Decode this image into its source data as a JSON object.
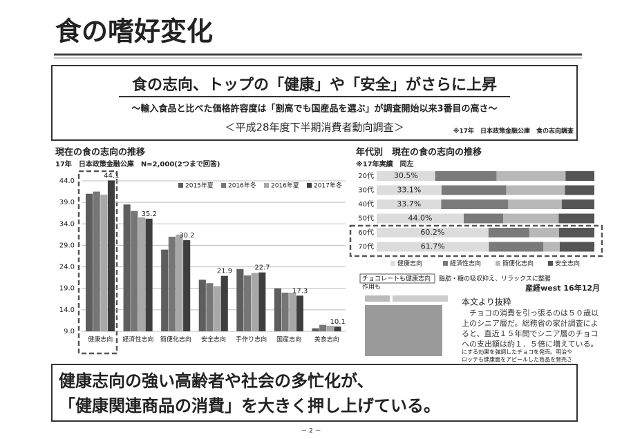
{
  "header": {
    "title": "食の嗜好変化"
  },
  "summary": {
    "headline": "食の志向、トップの「健康」や「安全」がさらに上昇",
    "subline": "～輸入食品と比べた価格許容度は「割高でも国産品を選ぶ」が調査開始以来3番目の高さ～",
    "survey": "＜平成28年度下半期消費者動向調査＞",
    "source": "※17年　日本政策金融公庫　食の志向調査"
  },
  "chart_data": [
    {
      "type": "bar",
      "title": "現在の食の志向の推移",
      "subtitle": "17年　日本政策金融公庫　N=2,000(2つまで回答)",
      "categories": [
        "健康志向",
        "経済性志向",
        "簡便化志向",
        "安全志向",
        "手作り志向",
        "国産志向",
        "美食志向"
      ],
      "series": [
        {
          "name": "2015年夏",
          "color": "#5e5e5e",
          "values": [
            41.0,
            38.5,
            28.0,
            21.0,
            23.5,
            19.0,
            9.7
          ]
        },
        {
          "name": "2016年冬",
          "color": "#767676",
          "values": [
            41.5,
            37.0,
            31.0,
            20.2,
            22.0,
            18.0,
            10.5
          ]
        },
        {
          "name": "2016年夏",
          "color": "#a8a8a8",
          "values": [
            40.8,
            35.5,
            31.5,
            19.5,
            22.6,
            18.0,
            10.3
          ]
        },
        {
          "name": "2017年冬",
          "color": "#3e3e3e",
          "values": [
            44.1,
            35.2,
            30.2,
            21.9,
            22.7,
            17.3,
            10.1
          ],
          "labels": true
        }
      ],
      "ylim": [
        9,
        44
      ],
      "yticks": [
        {
          "value": 9,
          "label": "9.0"
        },
        {
          "value": 14,
          "label": "14.0"
        },
        {
          "value": 19,
          "label": "19.0"
        },
        {
          "value": 24,
          "label": "24.0"
        },
        {
          "value": 29,
          "label": "29.0"
        },
        {
          "value": 34,
          "label": "34.0"
        },
        {
          "value": 39,
          "label": "39.0"
        },
        {
          "value": 44,
          "label": "44.0"
        }
      ],
      "grid": true,
      "legend": "top"
    },
    {
      "type": "bar",
      "orientation": "horizontal",
      "stacking": "percent",
      "title": "年代別　現在の食の志向の推移",
      "subtitle": "※17年実績　同左",
      "categories": [
        "20代",
        "30代",
        "40代",
        "50代",
        "60代",
        "70代"
      ],
      "series": [
        {
          "name": "健康志向",
          "color": "#dcdcdc",
          "values": [
            30.5,
            33.1,
            33.7,
            44.0,
            60.2,
            61.7
          ],
          "value_labels": [
            "30.5%",
            "33.1%",
            "33.7%",
            "44.0%",
            "60.2%",
            "61.7%"
          ]
        },
        {
          "name": "経済性志向",
          "color": "#7a7a7a",
          "values": [
            32,
            33,
            35,
            20,
            22,
            30
          ]
        },
        {
          "name": "簡便化志向",
          "color": "#b8b8b8",
          "values": [
            36,
            30,
            28,
            28,
            16,
            9
          ]
        },
        {
          "name": "安全志向",
          "color": "#555555",
          "values": [
            15,
            15,
            17,
            18,
            19,
            19
          ]
        }
      ],
      "legend": "bottom"
    }
  ],
  "article": {
    "tag": "チョコレートも健康志向",
    "headline": "脂肪・糖の吸収抑え、リラックスに整腸",
    "headline2": "作用も",
    "source": "産経west 16年12月",
    "excerpt_title": "本文より抜粋",
    "body": "チョコの消費を引っ張るのは５０歳以上のシニア層だ。総務省の家計調査によると、直近１５年間でシニア層のチョコへの支出額は約１．５倍に増えている。",
    "tail": [
      "にする効果を強調したチョコを発売。明治や",
      "ロッテも健康面をアピールした商品を発売さ"
    ]
  },
  "conclusion": {
    "lines": [
      "健康志向の強い高齢者や社会の多忙化が、",
      "「健康関連商品の消費」を大きく押し上げている。"
    ]
  },
  "footer": {
    "page": "－ 2 －"
  }
}
